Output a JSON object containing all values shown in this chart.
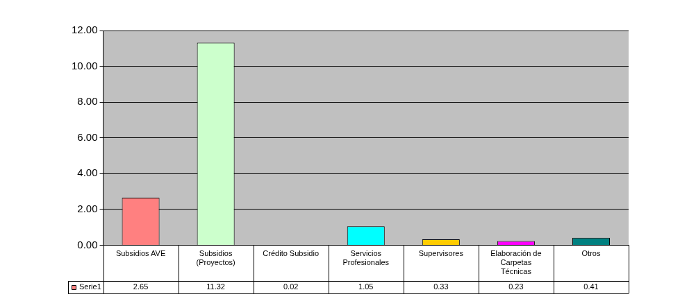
{
  "chart_data": {
    "type": "bar",
    "categories": [
      "Subsidios AVE",
      "Subsidios (Proyectos)",
      "Crédito Subsidio",
      "Servicios Profesionales",
      "Supervisores",
      "Elaboración de Carpetas Técnicas",
      "Otros"
    ],
    "series": [
      {
        "name": "Serie1",
        "color": "#ff8080",
        "colors": [
          "#ff8080",
          "#ccffcc",
          "#8080ff",
          "#00ffff",
          "#ffcc00",
          "#ff00ff",
          "#008080"
        ],
        "values": [
          2.65,
          11.32,
          0.02,
          1.05,
          0.33,
          0.23,
          0.41
        ]
      }
    ],
    "ylim": [
      0,
      12
    ],
    "yticks": [
      {
        "value": 0,
        "label": "0.00"
      },
      {
        "value": 2,
        "label": "2.00"
      },
      {
        "value": 4,
        "label": "4.00"
      },
      {
        "value": 6,
        "label": "6.00"
      },
      {
        "value": 8,
        "label": "8.00"
      },
      {
        "value": 10,
        "label": "10.00"
      },
      {
        "value": 12,
        "label": "12.00"
      }
    ],
    "grid": "y",
    "legend": "bottom",
    "data_labels": true
  }
}
